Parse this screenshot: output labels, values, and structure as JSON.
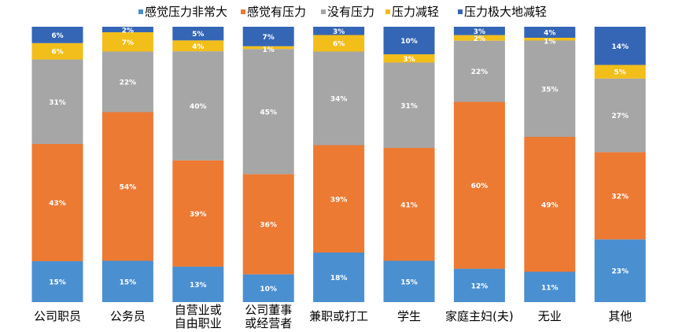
{
  "chart_data": {
    "type": "bar",
    "stacked": "percent",
    "title": "",
    "xlabel": "",
    "ylabel": "",
    "ylim": [
      0,
      100
    ],
    "grid": false,
    "legend_position": "top",
    "categories": [
      [
        "公司职员"
      ],
      [
        "公务员"
      ],
      [
        "自营业或",
        "自由职业"
      ],
      [
        "公司董事",
        "或经营者"
      ],
      [
        "兼职或打工"
      ],
      [
        "学生"
      ],
      [
        "家庭主妇(夫)"
      ],
      [
        "无业"
      ],
      [
        "其他"
      ]
    ],
    "series": [
      {
        "name": "感觉压力非常大",
        "color": "#4a8fd0",
        "values": [
          15,
          15,
          13,
          10,
          18,
          15,
          12,
          11,
          23
        ]
      },
      {
        "name": "感觉有压力",
        "color": "#ec7a33",
        "values": [
          43,
          54,
          39,
          36,
          39,
          41,
          60,
          49,
          32
        ]
      },
      {
        "name": "没有压力",
        "color": "#a6a6a6",
        "values": [
          31,
          22,
          40,
          45,
          34,
          31,
          22,
          35,
          27
        ]
      },
      {
        "name": "压力减轻",
        "color": "#f2be1a",
        "values": [
          6,
          7,
          4,
          1,
          6,
          3,
          2,
          1,
          5
        ]
      },
      {
        "name": "压力极大地减轻",
        "color": "#3565b5",
        "values": [
          6,
          2,
          5,
          7,
          3,
          10,
          3,
          4,
          14
        ]
      }
    ]
  }
}
